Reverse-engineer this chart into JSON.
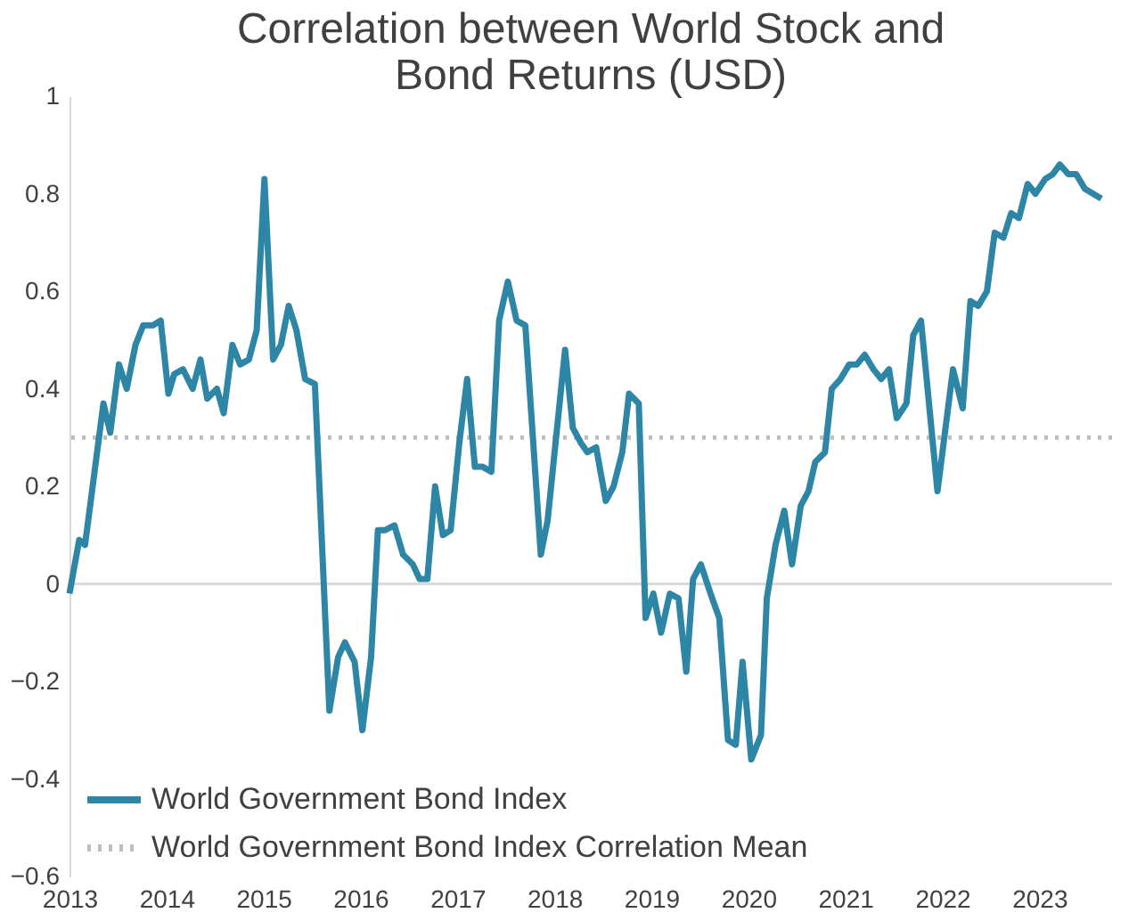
{
  "chart_data": {
    "type": "line",
    "title": "Correlation between World Stock and\nBond Returns (USD)",
    "x": [
      2013.0,
      2013.1,
      2013.16,
      2013.35,
      2013.42,
      2013.51,
      2013.59,
      2013.68,
      2013.76,
      2013.86,
      2013.94,
      2014.02,
      2014.08,
      2014.17,
      2014.27,
      2014.35,
      2014.42,
      2014.52,
      2014.59,
      2014.68,
      2014.76,
      2014.85,
      2014.93,
      2015.01,
      2015.1,
      2015.18,
      2015.26,
      2015.34,
      2015.43,
      2015.53,
      2015.68,
      2015.77,
      2015.84,
      2015.94,
      2016.02,
      2016.11,
      2016.18,
      2016.25,
      2016.35,
      2016.44,
      2016.54,
      2016.61,
      2016.69,
      2016.77,
      2016.85,
      2016.93,
      2017.02,
      2017.1,
      2017.18,
      2017.26,
      2017.35,
      2017.43,
      2017.52,
      2017.61,
      2017.7,
      2017.86,
      2017.93,
      2018.11,
      2018.19,
      2018.27,
      2018.34,
      2018.43,
      2018.53,
      2018.61,
      2018.7,
      2018.77,
      2018.87,
      2018.94,
      2019.02,
      2019.1,
      2019.19,
      2019.28,
      2019.36,
      2019.43,
      2019.51,
      2019.61,
      2019.7,
      2019.79,
      2019.87,
      2019.94,
      2020.03,
      2020.13,
      2020.19,
      2020.28,
      2020.37,
      2020.45,
      2020.54,
      2020.62,
      2020.69,
      2020.79,
      2020.86,
      2020.95,
      2021.04,
      2021.12,
      2021.2,
      2021.29,
      2021.37,
      2021.45,
      2021.53,
      2021.63,
      2021.7,
      2021.78,
      2021.95,
      2022.11,
      2022.21,
      2022.29,
      2022.37,
      2022.46,
      2022.54,
      2022.63,
      2022.71,
      2022.79,
      2022.88,
      2022.96,
      2023.06,
      2023.14,
      2023.21,
      2023.3,
      2023.38,
      2023.47,
      2023.64
    ],
    "series": [
      {
        "name": "World Government Bond Index",
        "color": "#2e86a6",
        "values": [
          -0.02,
          0.09,
          0.08,
          0.37,
          0.31,
          0.45,
          0.4,
          0.49,
          0.53,
          0.53,
          0.54,
          0.39,
          0.43,
          0.44,
          0.4,
          0.46,
          0.38,
          0.4,
          0.35,
          0.49,
          0.45,
          0.46,
          0.52,
          0.83,
          0.46,
          0.49,
          0.57,
          0.52,
          0.42,
          0.41,
          -0.26,
          -0.15,
          -0.12,
          -0.16,
          -0.3,
          -0.15,
          0.11,
          0.11,
          0.12,
          0.06,
          0.04,
          0.01,
          0.01,
          0.2,
          0.1,
          0.11,
          0.29,
          0.42,
          0.24,
          0.24,
          0.23,
          0.54,
          0.62,
          0.54,
          0.53,
          0.06,
          0.13,
          0.48,
          0.32,
          0.29,
          0.27,
          0.28,
          0.17,
          0.2,
          0.27,
          0.39,
          0.37,
          -0.07,
          -0.02,
          -0.1,
          -0.02,
          -0.03,
          -0.18,
          0.01,
          0.04,
          -0.02,
          -0.07,
          -0.32,
          -0.33,
          -0.16,
          -0.36,
          -0.31,
          -0.03,
          0.08,
          0.15,
          0.04,
          0.16,
          0.19,
          0.25,
          0.27,
          0.4,
          0.42,
          0.45,
          0.45,
          0.47,
          0.44,
          0.42,
          0.44,
          0.34,
          0.37,
          0.51,
          0.54,
          0.19,
          0.44,
          0.36,
          0.58,
          0.57,
          0.6,
          0.72,
          0.71,
          0.76,
          0.75,
          0.82,
          0.8,
          0.83,
          0.84,
          0.86,
          0.84,
          0.84,
          0.81,
          0.79
        ]
      }
    ],
    "ref_lines": [
      {
        "axis": "y",
        "value": 0.3,
        "label": "World Government Bond Index Correlation Mean",
        "color": "#bfbfbf",
        "line_style": "dotted"
      },
      {
        "axis": "y",
        "value": 0,
        "label": null,
        "color": "#d9d9d9",
        "line_style": "solid"
      }
    ],
    "xlim": [
      2013,
      2023.75
    ],
    "xticks": [
      2013,
      2014,
      2015,
      2016,
      2017,
      2018,
      2019,
      2020,
      2021,
      2022,
      2023
    ],
    "ylim": [
      -0.6,
      1
    ],
    "yticks": [
      -0.6,
      -0.4,
      -0.2,
      0,
      0.2,
      0.4,
      0.6,
      0.8,
      1
    ],
    "grid": false,
    "legend": "bottom left",
    "line_style": "solid",
    "marker": "none"
  }
}
